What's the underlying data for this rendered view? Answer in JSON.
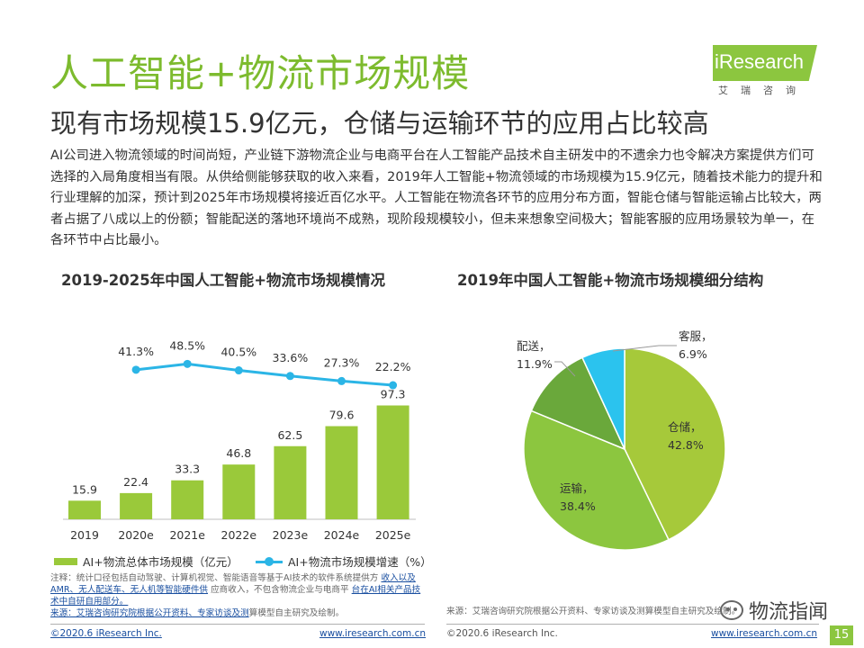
{
  "header": {
    "title": "人工智能+物流市场规模",
    "subtitle": "现有市场规模15.9亿元，仓储与运输环节的应用占比较高"
  },
  "logo": {
    "text": "iResearch",
    "cn": "艾瑞咨询"
  },
  "intro": "AI公司进入物流领域的时间尚短，产业链下游物流企业与电商平台在人工智能产品技术自主研发中的不遗余力也令解决方案提供方们可选择的入局角度相当有限。从供给侧能够获取的收入来看，2019年人工智能+物流领域的市场规模为15.9亿元，随着技术能力的提升和行业理解的加深，预计到2025年市场规模将接近百亿水平。人工智能在物流各环节的应用分布方面，智能仓储与智能运输占比较大，两者占据了八成以上的份额；智能配送的落地环境尚不成熟，现阶段规模较小，但未来想象空间极大；智能客服的应用场景较为单一，在各环节中占比最小。",
  "chart_data": [
    {
      "type": "bar",
      "title": "2019-2025年中国人工智能+物流市场规模情况",
      "categories": [
        "2019",
        "2020e",
        "2021e",
        "2022e",
        "2023e",
        "2024e",
        "2025e"
      ],
      "series": [
        {
          "name": "AI+物流总体市场规模（亿元）",
          "type": "bar",
          "color": "#9ac93a",
          "values": [
            15.9,
            22.4,
            33.3,
            46.8,
            62.5,
            79.6,
            97.3
          ],
          "labels": [
            "15.9",
            "22.4",
            "33.3",
            "46.8",
            "62.5",
            "79.6",
            "97.3"
          ]
        },
        {
          "name": "AI+物流市场规模增速（%）",
          "type": "line",
          "color": "#2bb5e6",
          "values": [
            null,
            41.3,
            48.5,
            40.5,
            33.6,
            27.3,
            22.2
          ],
          "labels": [
            "",
            "41.3%",
            "48.5%",
            "40.5%",
            "33.6%",
            "27.3%",
            "22.2%"
          ]
        }
      ],
      "grid": false
    },
    {
      "type": "pie",
      "title": "2019年中国人工智能+物流市场规模细分结构",
      "slices": [
        {
          "label": "仓储，",
          "value": 42.8,
          "value_label": "42.8%",
          "color": "#a6c93a"
        },
        {
          "label": "运输，",
          "value": 38.4,
          "value_label": "38.4%",
          "color": "#8cc63f"
        },
        {
          "label": "配送，",
          "value": 11.9,
          "value_label": "11.9%",
          "color": "#6aa83b"
        },
        {
          "label": "客服，",
          "value": 6.9,
          "value_label": "6.9%",
          "color": "#2bc3ee"
        }
      ]
    }
  ],
  "notes": {
    "note_prefix": "注释：统计口径包括自动驾驶、计算机视觉、智能语音等基于AI技术的软件系统提供方",
    "note_link1": "收入以及AMR、无人配送车、无人机等智能硬件供",
    "note_mid": "应商收入，不包含物流企业与电商平",
    "note_link2": "台在AI相关产品技术中自研自用部分。",
    "source_link": "来源：艾瑞咨询研究院根据公开资料、专家访谈及测",
    "source_tail": "算模型自主研究及绘制。",
    "source_right": "来源：艾瑞咨询研究院根据公开资料、专家访谈及测算模型自主研究及绘制。"
  },
  "footer": {
    "copyright_left": "©2020.6 iResearch Inc.",
    "url_left": "www.iresearch.com.cn",
    "copyright_right": "©2020.6 iResearch Inc.",
    "url_right": "www.iresearch.com.cn",
    "page": "15",
    "watermark": "物流指闻"
  }
}
